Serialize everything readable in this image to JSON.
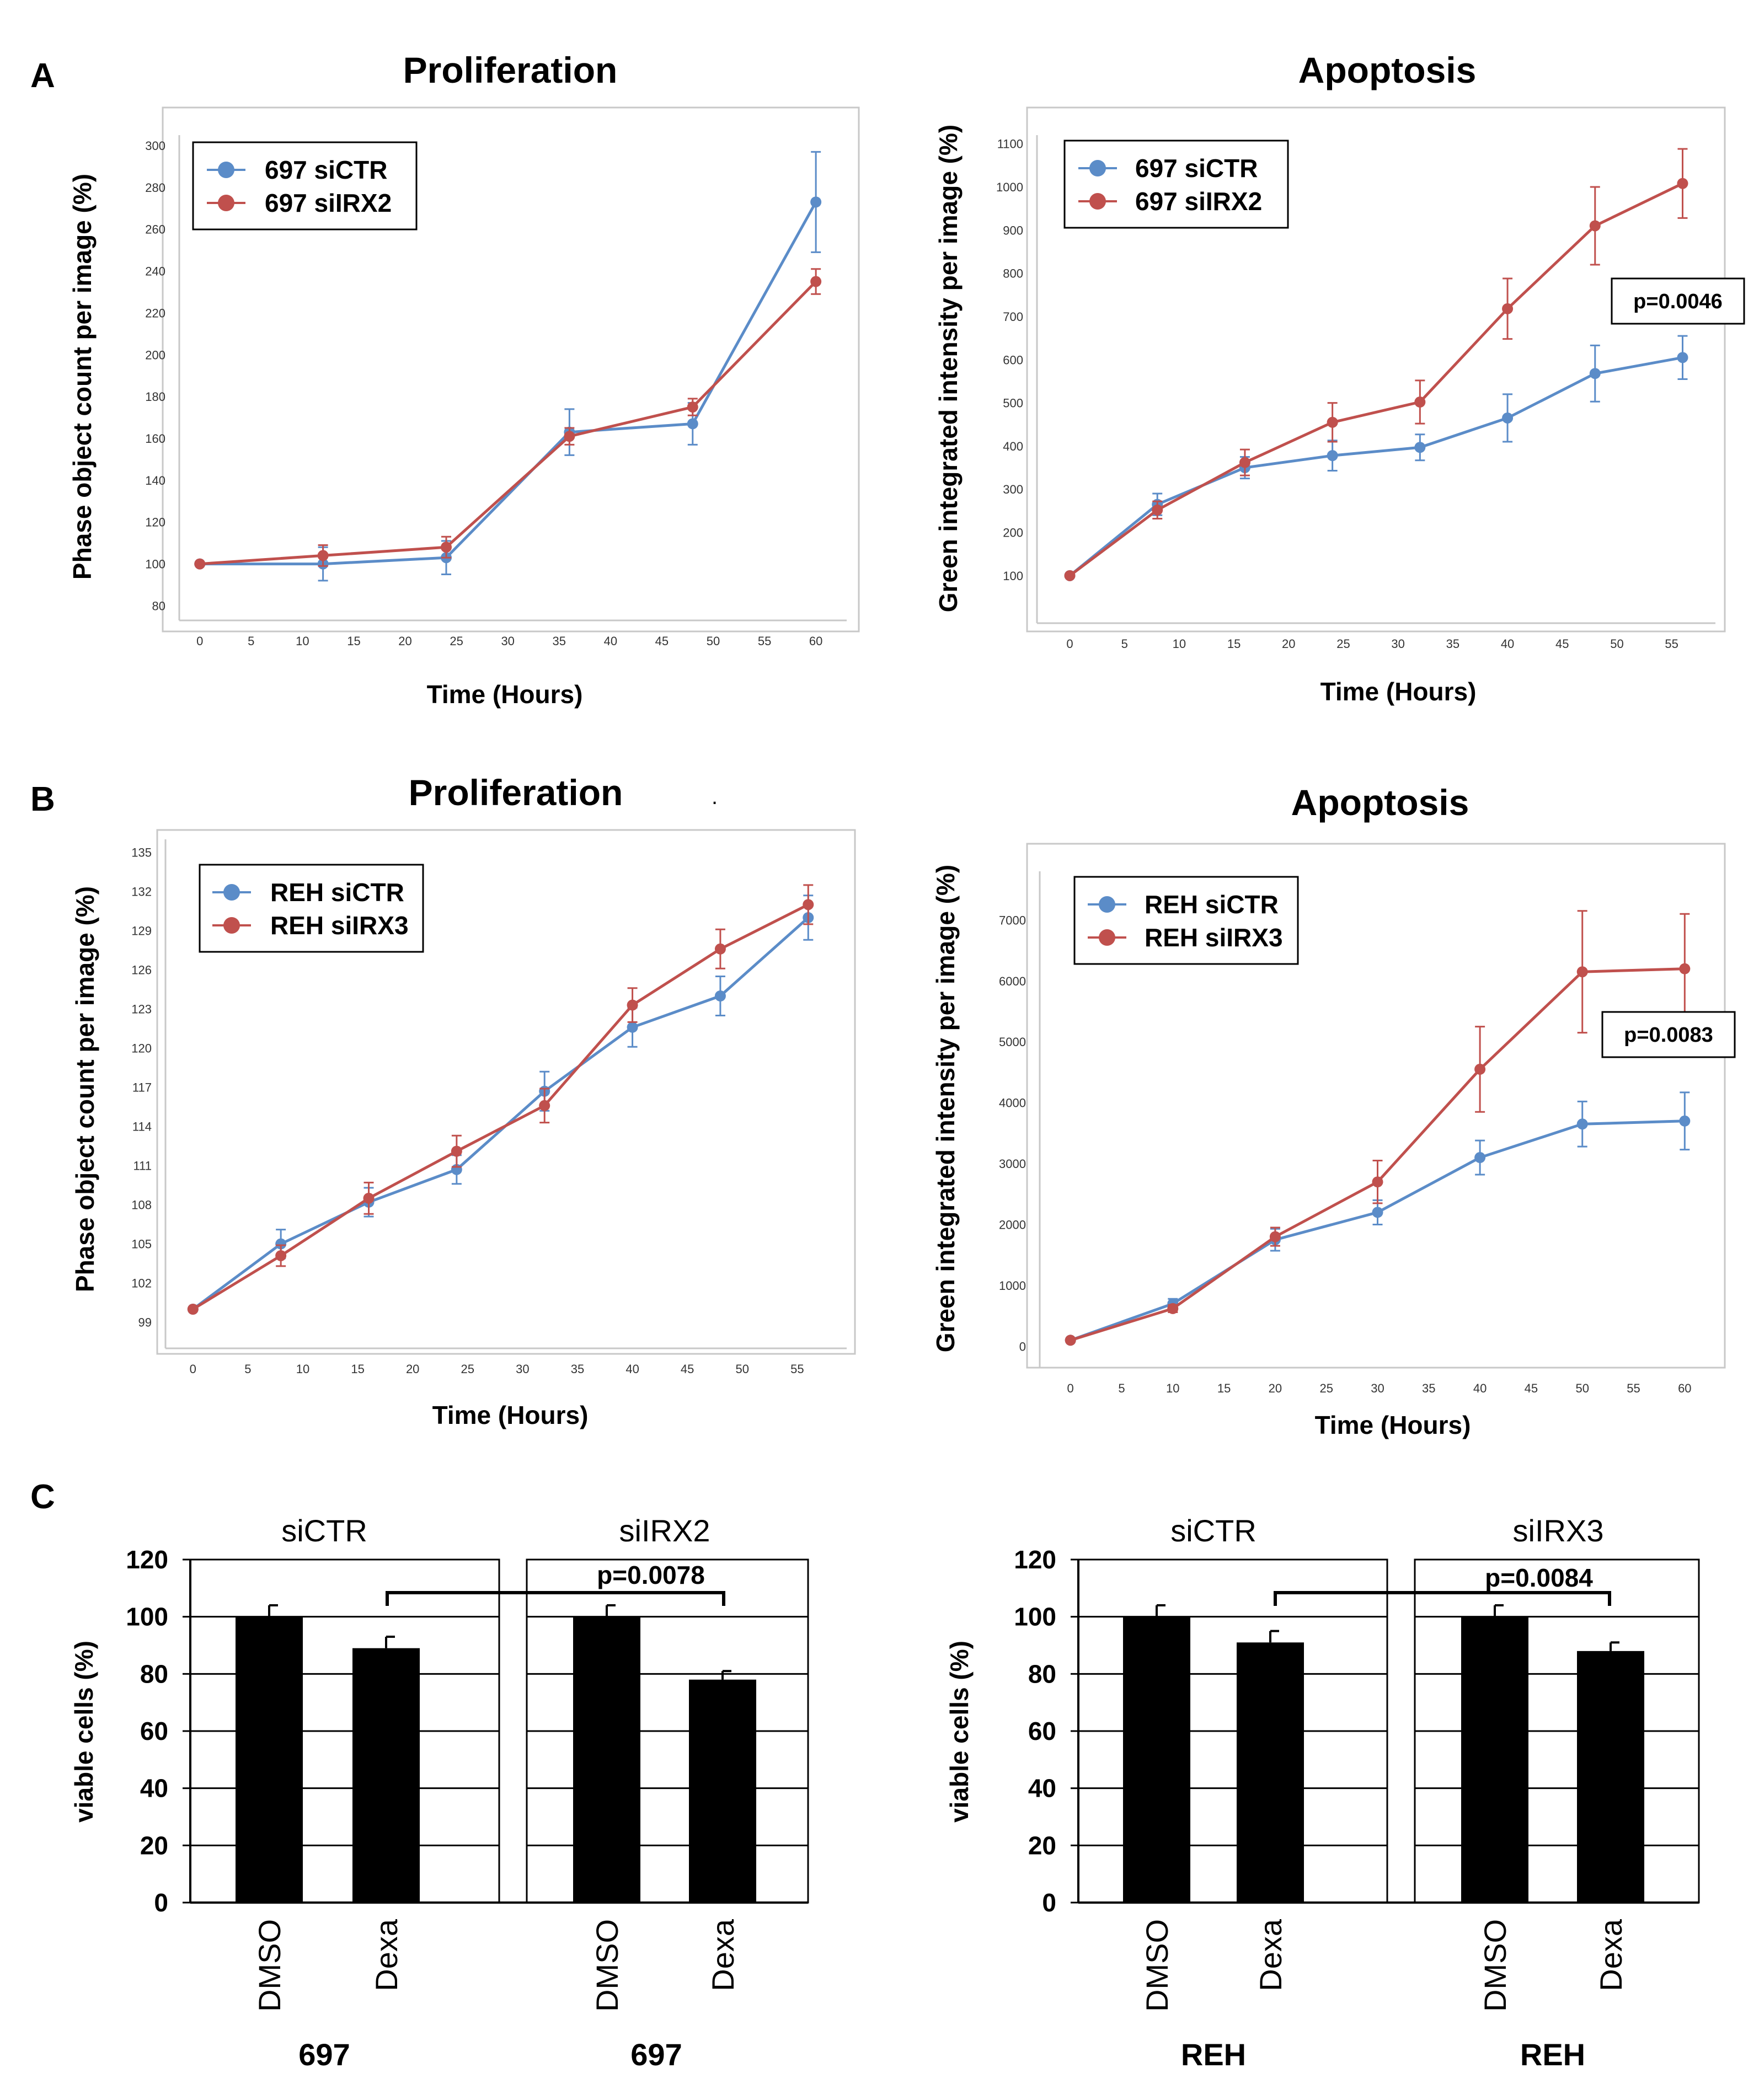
{
  "figure": {
    "colors": {
      "blue": "#5b8cc8",
      "red": "#c0504d",
      "frame": "#c8c8c8",
      "ink": "#000000"
    },
    "panel_labels": [
      "A",
      "B",
      "C"
    ],
    "stray_mark": "."
  },
  "chart_data": [
    {
      "id": "a1",
      "type": "line",
      "title": "Proliferation",
      "xlabel": "Time (Hours)",
      "ylabel": "Phase object count per image (%)",
      "xlim": [
        -2,
        63
      ],
      "ylim": [
        73,
        305
      ],
      "xticks": [
        0,
        5,
        10,
        15,
        20,
        25,
        30,
        35,
        40,
        45,
        50,
        55,
        60
      ],
      "xtick_labels": [
        "0",
        "5",
        "10",
        "15",
        "20",
        "25",
        "30",
        "35",
        "40",
        "45",
        "50",
        "55",
        "60"
      ],
      "yticks": [
        80,
        100,
        120,
        140,
        160,
        180,
        200,
        220,
        240,
        260,
        280,
        300
      ],
      "ytick_labels": [
        "80",
        "100",
        "120",
        "140",
        "160",
        "180",
        "200",
        "220",
        "240",
        "260",
        "280",
        "300"
      ],
      "series": [
        {
          "name": "697 siCTR",
          "color": "#5b8cc8",
          "x": [
            0,
            12,
            24,
            36,
            48,
            60
          ],
          "values": [
            100,
            100,
            103,
            163,
            167,
            273
          ],
          "errors": [
            0,
            8,
            8,
            11,
            10,
            24
          ]
        },
        {
          "name": "697 siIRX2",
          "color": "#c0504d",
          "x": [
            0,
            12,
            24,
            36,
            48,
            60
          ],
          "values": [
            100,
            104,
            108,
            161,
            175,
            235
          ],
          "errors": [
            0,
            5,
            5,
            4,
            4,
            6
          ]
        }
      ]
    },
    {
      "id": "a2",
      "type": "line",
      "title": "Apoptosis",
      "xlabel": "Time (Hours)",
      "ylabel": "Green integrated intensity per image (%)",
      "xlim": [
        -3,
        59
      ],
      "ylim": [
        -10,
        1120
      ],
      "xticks": [
        0,
        5,
        10,
        15,
        20,
        25,
        30,
        35,
        40,
        45,
        50,
        55
      ],
      "xtick_labels": [
        "0",
        "5",
        "10",
        "15",
        "20",
        "25",
        "30",
        "35",
        "40",
        "45",
        "50",
        "55"
      ],
      "yticks": [
        100,
        200,
        300,
        400,
        500,
        600,
        700,
        800,
        900,
        1000,
        1100
      ],
      "ytick_labels": [
        "100",
        "200",
        "300",
        "400",
        "500",
        "600",
        "700",
        "800",
        "900",
        "1000",
        "1100"
      ],
      "annotation": "p=0.0046",
      "series": [
        {
          "name": "697 siCTR",
          "color": "#5b8cc8",
          "x": [
            0,
            8,
            16,
            24,
            32,
            40,
            48,
            56
          ],
          "values": [
            100,
            265,
            350,
            378,
            397,
            465,
            568,
            605
          ],
          "errors": [
            0,
            25,
            25,
            35,
            30,
            55,
            65,
            50
          ]
        },
        {
          "name": "697 siIRX2",
          "color": "#c0504d",
          "x": [
            0,
            8,
            16,
            24,
            32,
            40,
            48,
            56
          ],
          "values": [
            100,
            252,
            362,
            455,
            502,
            718,
            910,
            1008
          ],
          "errors": [
            0,
            20,
            30,
            45,
            50,
            70,
            90,
            80
          ]
        }
      ]
    },
    {
      "id": "b1",
      "type": "line",
      "title": "Proliferation",
      "xlabel": "Time (Hours)",
      "ylabel": "Phase object count per image (%)",
      "xlim": [
        -2.5,
        59.5
      ],
      "ylim": [
        97,
        136
      ],
      "xticks": [
        0,
        5,
        10,
        15,
        20,
        25,
        30,
        35,
        40,
        45,
        50,
        55
      ],
      "xtick_labels": [
        "0",
        "5",
        "10",
        "15",
        "20",
        "25",
        "30",
        "35",
        "40",
        "45",
        "50",
        "55"
      ],
      "yticks": [
        99,
        102,
        105,
        108,
        111,
        114,
        117,
        120,
        123,
        126,
        129,
        132,
        135
      ],
      "ytick_labels": [
        "99",
        "102",
        "105",
        "108",
        "111",
        "114",
        "117",
        "120",
        "123",
        "126",
        "129",
        "132",
        "135"
      ],
      "series": [
        {
          "name": "REH siCTR",
          "color": "#5b8cc8",
          "x": [
            0,
            8,
            16,
            24,
            32,
            40,
            48,
            56
          ],
          "values": [
            100,
            105,
            108.2,
            110.7,
            116.7,
            121.6,
            124,
            130
          ],
          "errors": [
            0,
            1.1,
            1.1,
            1.1,
            1.5,
            1.5,
            1.5,
            1.7
          ]
        },
        {
          "name": "REH siIRX3",
          "color": "#c0504d",
          "x": [
            0,
            8,
            16,
            24,
            32,
            40,
            48,
            56
          ],
          "values": [
            100,
            104.1,
            108.5,
            112.1,
            115.6,
            123.3,
            127.6,
            131
          ],
          "errors": [
            0,
            0.8,
            1.2,
            1.2,
            1.3,
            1.3,
            1.5,
            1.5
          ]
        }
      ]
    },
    {
      "id": "b2",
      "type": "line",
      "title": "Apoptosis",
      "xlabel": "Time (Hours)",
      "ylabel": "Green integrated intensity per image (%)",
      "xlim": [
        -3,
        63
      ],
      "ylim": [
        -350,
        7800
      ],
      "xticks": [
        0,
        5,
        10,
        15,
        20,
        25,
        30,
        35,
        40,
        45,
        50,
        55,
        60
      ],
      "xtick_labels": [
        "0",
        "5",
        "10",
        "15",
        "20",
        "25",
        "30",
        "35",
        "40",
        "45",
        "50",
        "55",
        "60"
      ],
      "yticks": [
        0,
        1000,
        2000,
        3000,
        4000,
        5000,
        6000,
        7000
      ],
      "ytick_labels": [
        "0",
        "1000",
        "2000",
        "3000",
        "4000",
        "5000",
        "6000",
        "7000"
      ],
      "annotation": "p=0.0083",
      "series": [
        {
          "name": "REH siCTR",
          "color": "#5b8cc8",
          "x": [
            0,
            10,
            20,
            30,
            40,
            50,
            60
          ],
          "values": [
            100,
            700,
            1750,
            2200,
            3100,
            3650,
            3700
          ],
          "errors": [
            0,
            80,
            180,
            200,
            280,
            370,
            470
          ]
        },
        {
          "name": "REH siIRX3",
          "color": "#c0504d",
          "x": [
            0,
            10,
            20,
            30,
            40,
            50,
            60
          ],
          "values": [
            100,
            620,
            1800,
            2700,
            4550,
            6150,
            6200
          ],
          "errors": [
            0,
            60,
            150,
            350,
            700,
            1000,
            900
          ]
        }
      ]
    },
    {
      "id": "c1",
      "type": "bar",
      "ylabel": "viable cells (%)",
      "ylim": [
        0,
        120
      ],
      "yticks": [
        0,
        20,
        40,
        60,
        80,
        100,
        120
      ],
      "ytick_labels": [
        "0",
        "20",
        "40",
        "60",
        "80",
        "100",
        "120"
      ],
      "groups": [
        {
          "label": "siCTR",
          "sublabel": "697",
          "categories": [
            "DMSO",
            "Dexa"
          ],
          "values": [
            100,
            89
          ],
          "errors": [
            4,
            4
          ]
        },
        {
          "label": "siIRX2",
          "sublabel": "697",
          "categories": [
            "DMSO",
            "Dexa"
          ],
          "values": [
            100,
            78
          ],
          "errors": [
            4,
            3
          ]
        }
      ],
      "annotation": "p=0.0078"
    },
    {
      "id": "c2",
      "type": "bar",
      "ylabel": "viable cells (%)",
      "ylim": [
        0,
        120
      ],
      "yticks": [
        0,
        20,
        40,
        60,
        80,
        100,
        120
      ],
      "ytick_labels": [
        "0",
        "20",
        "40",
        "60",
        "80",
        "100",
        "120"
      ],
      "groups": [
        {
          "label": "siCTR",
          "sublabel": "REH",
          "categories": [
            "DMSO",
            "Dexa"
          ],
          "values": [
            100,
            91
          ],
          "errors": [
            4,
            4
          ]
        },
        {
          "label": "siIRX3",
          "sublabel": "REH",
          "categories": [
            "DMSO",
            "Dexa"
          ],
          "values": [
            100,
            88
          ],
          "errors": [
            4,
            3
          ]
        }
      ],
      "annotation": "p=0.0084"
    }
  ]
}
